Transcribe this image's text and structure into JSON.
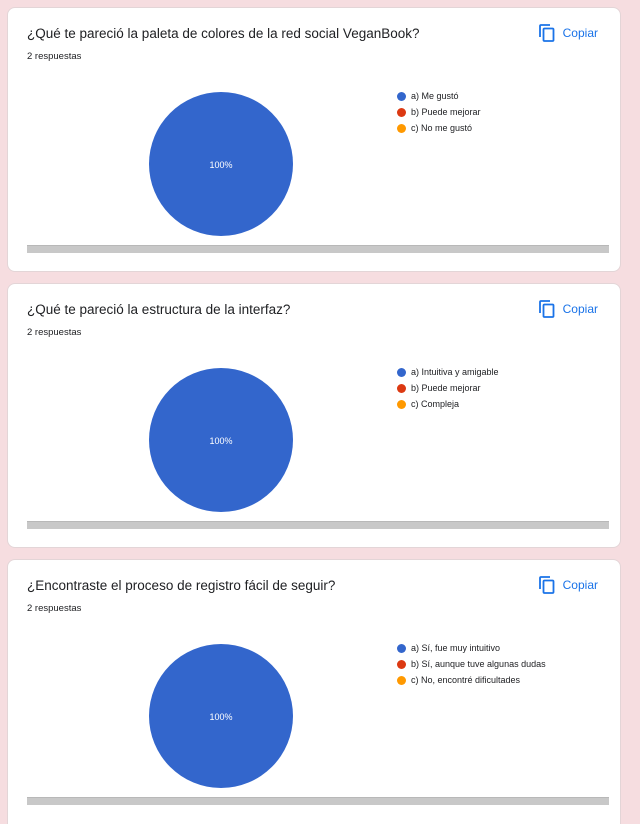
{
  "colors": {
    "accent": "#1a73e8",
    "page_bg": "#f6dde0",
    "series": [
      "#3366cc",
      "#dc3912",
      "#ff9900"
    ]
  },
  "cards": [
    {
      "title": "¿Qué te pareció la paleta de colores de la red social VeganBook?",
      "count": "2 respuestas",
      "copy_label": "Copiar",
      "legend": [
        "a) Me gustó",
        "b) Puede mejorar",
        "c) No me gustó"
      ],
      "chart_data": {
        "type": "pie",
        "categories": [
          "a) Me gustó",
          "b) Puede mejorar",
          "c) No me gustó"
        ],
        "values": [
          100,
          0,
          0
        ],
        "slice_label": "100%"
      }
    },
    {
      "title": "¿Qué te pareció la estructura de la interfaz?",
      "count": "2 respuestas",
      "copy_label": "Copiar",
      "legend": [
        "a) Intuitiva y amigable",
        "b) Puede mejorar",
        "c) Compleja"
      ],
      "chart_data": {
        "type": "pie",
        "categories": [
          "a) Intuitiva y amigable",
          "b) Puede mejorar",
          "c) Compleja"
        ],
        "values": [
          100,
          0,
          0
        ],
        "slice_label": "100%"
      }
    },
    {
      "title": "¿Encontraste el proceso de registro fácil de seguir?",
      "count": "2 respuestas",
      "copy_label": "Copiar",
      "legend": [
        "a) Sí, fue muy intuitivo",
        "b) Sí, aunque tuve algunas dudas",
        "c) No, encontré dificultades"
      ],
      "chart_data": {
        "type": "pie",
        "categories": [
          "a) Sí, fue muy intuitivo",
          "b) Sí, aunque tuve algunas dudas",
          "c) No, encontré dificultades"
        ],
        "values": [
          100,
          0,
          0
        ],
        "slice_label": "100%"
      }
    }
  ]
}
